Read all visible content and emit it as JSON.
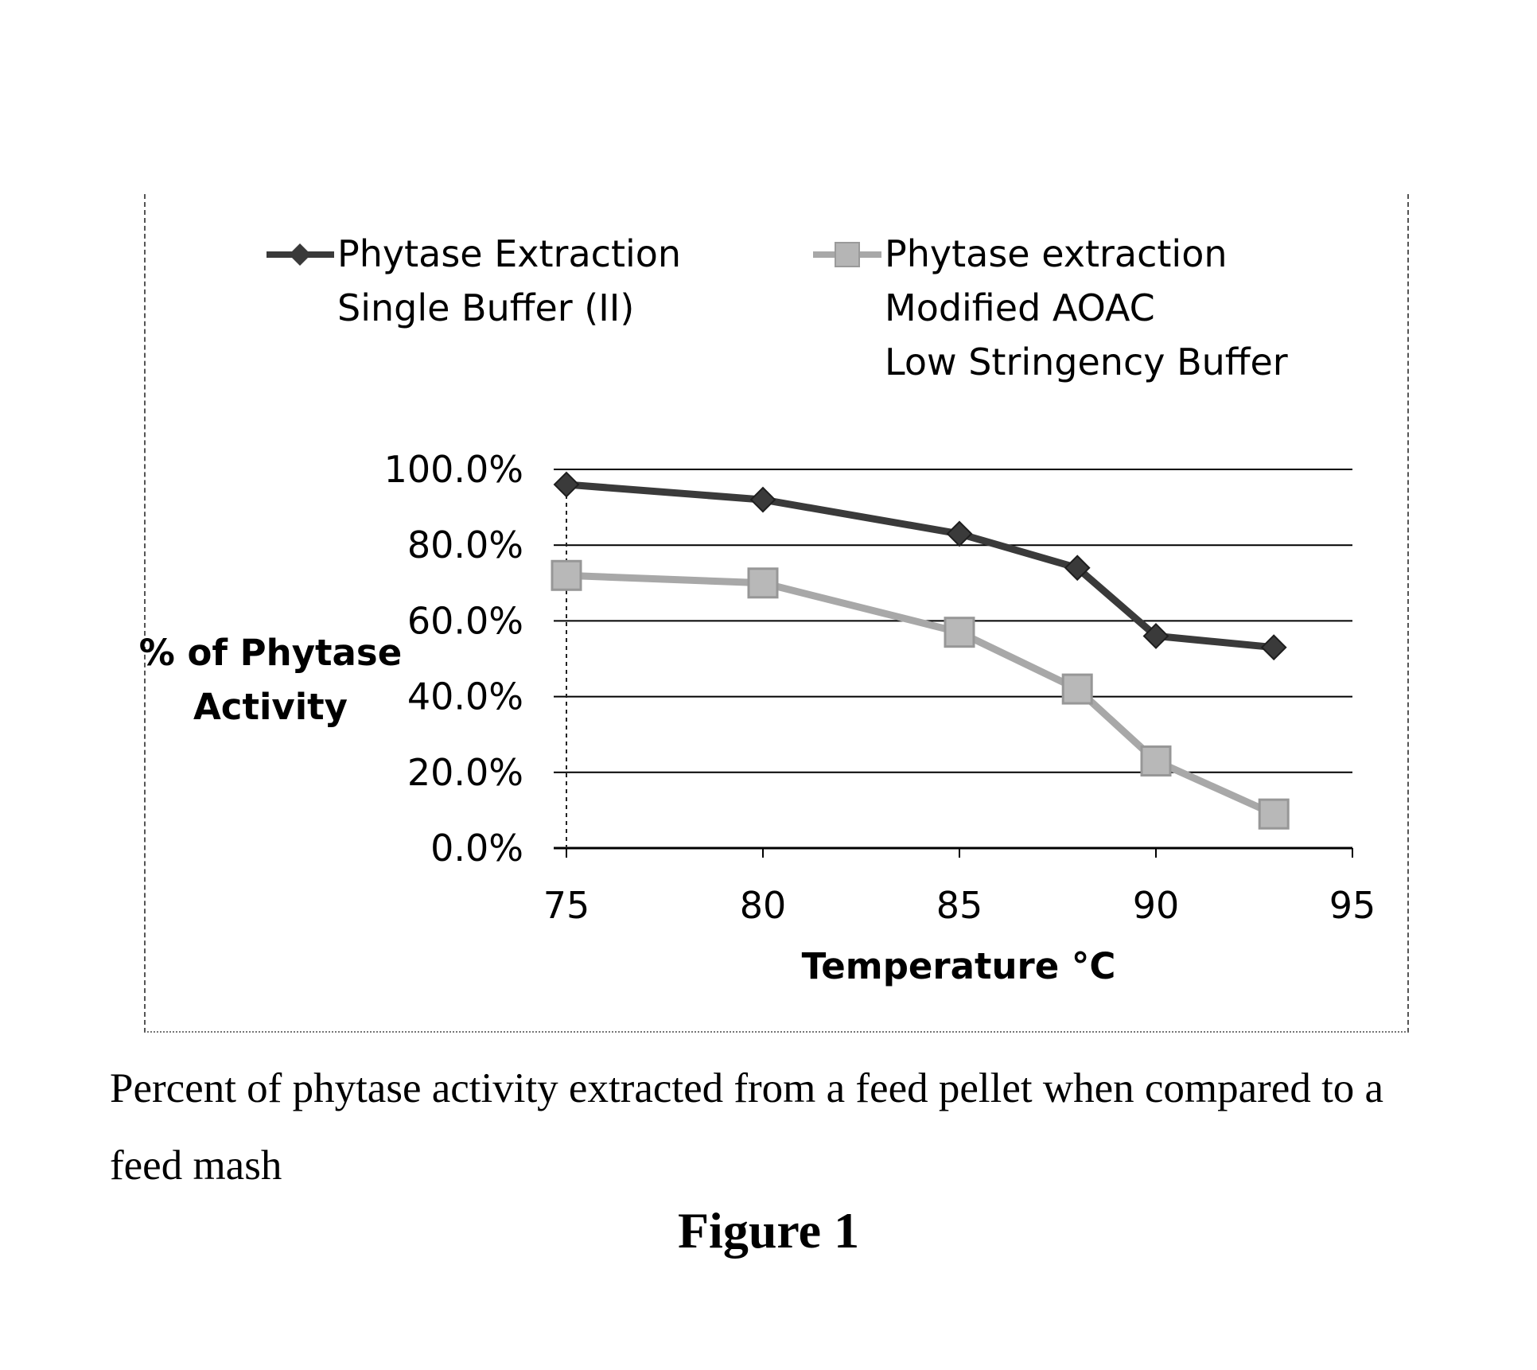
{
  "chart_data": {
    "type": "line",
    "title": "",
    "xlabel": "Temperature °C",
    "ylabel_lines": [
      "% of Phytase",
      "Activity"
    ],
    "xlim": [
      75,
      95
    ],
    "ylim": [
      0,
      1.0
    ],
    "x_ticks": [
      75,
      80,
      85,
      90,
      95
    ],
    "x_tick_labels": [
      "75",
      "80",
      "85",
      "90",
      "95"
    ],
    "y_ticks": [
      0,
      0.2,
      0.4,
      0.6,
      0.8,
      1.0
    ],
    "y_tick_labels": [
      "0.0%",
      "20.0%",
      "40.0%",
      "60.0%",
      "80.0%",
      "100.0%"
    ],
    "grid": "horizontal",
    "legend_position": "top",
    "series": [
      {
        "name_lines": [
          "Phytase Extraction",
          "Single Buffer (II)"
        ],
        "marker": "diamond",
        "color": "#3a3a3a",
        "x": [
          75,
          80,
          85,
          88,
          90,
          93
        ],
        "y": [
          0.96,
          0.92,
          0.83,
          0.74,
          0.56,
          0.53
        ]
      },
      {
        "name_lines": [
          "Phytase extraction",
          "Modified AOAC",
          "Low Stringency Buffer"
        ],
        "marker": "square",
        "color": "#a8a8a8",
        "x": [
          75,
          80,
          85,
          88,
          90,
          93
        ],
        "y": [
          0.72,
          0.7,
          0.57,
          0.42,
          0.23,
          0.09
        ]
      }
    ]
  },
  "caption": "Percent of phytase activity extracted from a feed pellet when compared to a feed mash",
  "figure_label": "Figure 1"
}
